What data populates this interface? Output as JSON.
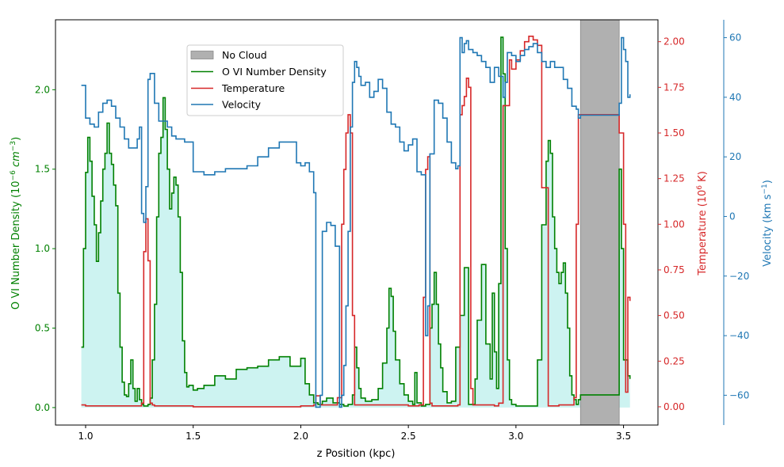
{
  "chart_data": {
    "type": "line",
    "xlabel": "z Position (kpc)",
    "ylabel_left": "O VI Number Density (10",
    "ylabel_left_sup": "−6",
    "ylabel_left_unit_italic": "cm",
    "ylabel_left_sup2": "−3",
    "ylabel_left_close": ")",
    "ylabel_right1": "Temperature (10",
    "ylabel_right1_sup": "6",
    "ylabel_right1_close": " K)",
    "ylabel_right2": "Velocity (km s",
    "ylabel_right2_sup": "−1",
    "ylabel_right2_close": ")",
    "xlim": [
      0.86,
      3.66
    ],
    "ylim_left": [
      -0.11,
      2.44
    ],
    "ylim_temp": [
      -0.1,
      2.12
    ],
    "ylim_vel": [
      -70,
      66
    ],
    "x_ticks": [
      "1.0",
      "1.5",
      "2.0",
      "2.5",
      "3.0",
      "3.5"
    ],
    "x_tick_values": [
      1.0,
      1.5,
      2.0,
      2.5,
      3.0,
      3.5
    ],
    "left_ticks": [
      "0.0",
      "0.5",
      "1.0",
      "1.5",
      "2.0"
    ],
    "left_tick_values": [
      0.0,
      0.5,
      1.0,
      1.5,
      2.0
    ],
    "temp_ticks": [
      "0.00",
      "0.25",
      "0.50",
      "0.75",
      "1.00",
      "1.25",
      "1.50",
      "1.75",
      "2.00"
    ],
    "temp_tick_values": [
      0.0,
      0.25,
      0.5,
      0.75,
      1.0,
      1.25,
      1.5,
      1.75,
      2.0
    ],
    "vel_ticks": [
      "−60",
      "−40",
      "−20",
      "0",
      "20",
      "40",
      "60"
    ],
    "vel_tick_values": [
      -60,
      -40,
      -20,
      0,
      20,
      40,
      60
    ],
    "legend_position": "upper-center",
    "legend": [
      "No Cloud",
      "O VI Number Density",
      "Temperature",
      "Velocity"
    ],
    "no_cloud_region": [
      3.3,
      3.48
    ],
    "colors": {
      "density": "#008000",
      "temperature": "#d62728",
      "velocity": "#1f77b4",
      "fill": "#cdf3f1",
      "no_cloud": "#b0b0b0",
      "left_axis": "#008000",
      "temp_axis": "#d62728",
      "vel_axis": "#1f77b4"
    },
    "series": [
      {
        "name": "O VI Number Density",
        "x": [
          0.98,
          0.99,
          1.0,
          1.01,
          1.02,
          1.03,
          1.04,
          1.05,
          1.06,
          1.07,
          1.08,
          1.09,
          1.1,
          1.11,
          1.12,
          1.13,
          1.14,
          1.15,
          1.16,
          1.17,
          1.18,
          1.19,
          1.2,
          1.21,
          1.22,
          1.23,
          1.24,
          1.25,
          1.26,
          1.27,
          1.28,
          1.29,
          1.3,
          1.31,
          1.32,
          1.33,
          1.34,
          1.35,
          1.36,
          1.37,
          1.38,
          1.39,
          1.4,
          1.41,
          1.42,
          1.43,
          1.44,
          1.45,
          1.46,
          1.47,
          1.48,
          1.5,
          1.52,
          1.55,
          1.6,
          1.65,
          1.7,
          1.75,
          1.8,
          1.85,
          1.9,
          1.95,
          2.0,
          2.02,
          2.04,
          2.06,
          2.08,
          2.1,
          2.12,
          2.15,
          2.18,
          2.2,
          2.22,
          2.24,
          2.25,
          2.26,
          2.27,
          2.28,
          2.3,
          2.33,
          2.36,
          2.38,
          2.4,
          2.41,
          2.42,
          2.43,
          2.44,
          2.46,
          2.48,
          2.5,
          2.52,
          2.53,
          2.54,
          2.56,
          2.58,
          2.6,
          2.61,
          2.62,
          2.63,
          2.64,
          2.65,
          2.66,
          2.68,
          2.7,
          2.72,
          2.74,
          2.76,
          2.78,
          2.8,
          2.81,
          2.82,
          2.84,
          2.86,
          2.88,
          2.89,
          2.9,
          2.91,
          2.92,
          2.93,
          2.94,
          2.95,
          2.96,
          2.97,
          2.98,
          3.0,
          3.05,
          3.1,
          3.12,
          3.14,
          3.15,
          3.16,
          3.17,
          3.18,
          3.19,
          3.2,
          3.21,
          3.22,
          3.23,
          3.24,
          3.25,
          3.26,
          3.27,
          3.28,
          3.29,
          3.3,
          3.48,
          3.49,
          3.5,
          3.51,
          3.52,
          3.53
        ],
        "values": [
          0.38,
          1.0,
          1.48,
          1.7,
          1.55,
          1.33,
          1.15,
          0.92,
          1.1,
          1.3,
          1.5,
          1.6,
          1.79,
          1.6,
          1.53,
          1.4,
          1.27,
          0.72,
          0.38,
          0.16,
          0.08,
          0.07,
          0.15,
          0.3,
          0.12,
          0.04,
          0.12,
          0.05,
          0.02,
          0.01,
          0.01,
          0.02,
          0.06,
          0.3,
          0.65,
          1.2,
          1.6,
          1.7,
          1.95,
          1.75,
          1.5,
          1.25,
          1.35,
          1.45,
          1.4,
          1.2,
          0.85,
          0.42,
          0.22,
          0.13,
          0.14,
          0.11,
          0.12,
          0.14,
          0.2,
          0.18,
          0.24,
          0.25,
          0.26,
          0.3,
          0.32,
          0.26,
          0.31,
          0.15,
          0.08,
          0.03,
          0.02,
          0.04,
          0.06,
          0.03,
          0.02,
          0.01,
          0.02,
          0.08,
          0.38,
          0.25,
          0.12,
          0.06,
          0.04,
          0.05,
          0.12,
          0.28,
          0.5,
          0.75,
          0.7,
          0.48,
          0.3,
          0.15,
          0.08,
          0.04,
          0.02,
          0.22,
          0.03,
          0.01,
          0.02,
          0.5,
          0.65,
          0.85,
          0.65,
          0.4,
          0.25,
          0.1,
          0.03,
          0.04,
          0.38,
          0.58,
          0.88,
          0.02,
          0.02,
          0.18,
          0.55,
          0.9,
          0.4,
          0.18,
          0.72,
          0.35,
          0.12,
          0.78,
          2.33,
          2.1,
          1.0,
          0.3,
          0.05,
          0.02,
          0.01,
          0.01,
          0.3,
          1.15,
          1.55,
          1.68,
          1.6,
          1.2,
          1.0,
          0.85,
          0.78,
          0.85,
          0.91,
          0.72,
          0.5,
          0.2,
          0.08,
          0.05,
          0.02,
          0.05,
          0.08,
          1.5,
          1.0,
          0.3,
          0.3,
          0.2,
          0.18
        ]
      },
      {
        "name": "Temperature",
        "x": [
          0.98,
          1.0,
          1.2,
          1.25,
          1.26,
          1.27,
          1.28,
          1.29,
          1.3,
          1.31,
          1.32,
          1.35,
          1.5,
          1.8,
          2.0,
          2.06,
          2.07,
          2.08,
          2.09,
          2.1,
          2.15,
          2.17,
          2.19,
          2.2,
          2.21,
          2.22,
          2.23,
          2.24,
          2.25,
          2.3,
          2.5,
          2.55,
          2.57,
          2.58,
          2.59,
          2.6,
          2.61,
          2.63,
          2.7,
          2.73,
          2.74,
          2.75,
          2.76,
          2.77,
          2.78,
          2.79,
          2.8,
          2.85,
          2.9,
          2.92,
          2.94,
          2.97,
          2.98,
          3.0,
          3.02,
          3.04,
          3.06,
          3.08,
          3.1,
          3.12,
          3.15,
          3.2,
          3.25,
          3.27,
          3.28,
          3.29,
          3.48,
          3.5,
          3.51,
          3.52,
          3.53
        ],
        "values": [
          0.01,
          0.005,
          0.005,
          0.005,
          0.02,
          0.85,
          1.03,
          0.8,
          0.02,
          0.01,
          0.005,
          0.005,
          0.0,
          0.0,
          0.005,
          0.01,
          0.06,
          0.06,
          0.01,
          0.01,
          0.01,
          0.05,
          1.0,
          1.3,
          1.5,
          1.6,
          1.5,
          0.5,
          0.01,
          0.01,
          0.005,
          0.01,
          0.6,
          1.3,
          1.37,
          0.02,
          0.005,
          0.005,
          0.005,
          0.01,
          1.6,
          1.65,
          1.7,
          1.8,
          1.75,
          0.1,
          0.01,
          0.01,
          0.005,
          0.02,
          1.65,
          1.9,
          1.85,
          1.9,
          1.95,
          2.0,
          2.03,
          2.01,
          1.98,
          1.2,
          0.005,
          0.01,
          0.01,
          0.05,
          1.0,
          1.6,
          1.5,
          1.0,
          0.08,
          0.6,
          0.58
        ]
      },
      {
        "name": "Velocity",
        "x": [
          0.98,
          1.0,
          1.02,
          1.04,
          1.06,
          1.08,
          1.1,
          1.12,
          1.14,
          1.16,
          1.18,
          1.2,
          1.22,
          1.24,
          1.25,
          1.26,
          1.27,
          1.28,
          1.29,
          1.3,
          1.32,
          1.34,
          1.36,
          1.38,
          1.4,
          1.42,
          1.44,
          1.46,
          1.48,
          1.5,
          1.55,
          1.6,
          1.65,
          1.7,
          1.75,
          1.8,
          1.85,
          1.9,
          1.95,
          1.98,
          2.0,
          2.02,
          2.04,
          2.06,
          2.07,
          2.08,
          2.09,
          2.1,
          2.12,
          2.14,
          2.16,
          2.18,
          2.19,
          2.2,
          2.21,
          2.22,
          2.23,
          2.24,
          2.25,
          2.26,
          2.27,
          2.28,
          2.3,
          2.32,
          2.34,
          2.36,
          2.38,
          2.4,
          2.42,
          2.44,
          2.46,
          2.48,
          2.5,
          2.52,
          2.54,
          2.56,
          2.58,
          2.59,
          2.6,
          2.62,
          2.64,
          2.66,
          2.68,
          2.7,
          2.72,
          2.73,
          2.74,
          2.75,
          2.76,
          2.77,
          2.78,
          2.8,
          2.82,
          2.84,
          2.86,
          2.88,
          2.9,
          2.92,
          2.94,
          2.95,
          2.96,
          2.98,
          3.0,
          3.02,
          3.04,
          3.06,
          3.08,
          3.1,
          3.12,
          3.14,
          3.16,
          3.18,
          3.2,
          3.22,
          3.24,
          3.26,
          3.28,
          3.29,
          3.3,
          3.48,
          3.49,
          3.5,
          3.51,
          3.52,
          3.53
        ],
        "values": [
          44,
          33,
          31,
          30,
          35,
          38,
          39,
          37,
          33,
          30,
          26,
          23,
          23,
          26,
          30,
          1,
          -2,
          10,
          46,
          48,
          38,
          32,
          32,
          30,
          27,
          26,
          26,
          25,
          25,
          15,
          14,
          15,
          16,
          16,
          17,
          20,
          23,
          25,
          25,
          18,
          17,
          18,
          15,
          8,
          -64,
          -64,
          -60,
          -5,
          -2,
          -3,
          -10,
          -64,
          -60,
          -50,
          -30,
          -5,
          30,
          45,
          52,
          50,
          47,
          44,
          45,
          40,
          42,
          46,
          43,
          35,
          31,
          30,
          25,
          22,
          24,
          26,
          15,
          14,
          -40,
          -30,
          21,
          39,
          38,
          33,
          25,
          18,
          16,
          17,
          60,
          55,
          58,
          59,
          56,
          55,
          54,
          52,
          50,
          45,
          50,
          47,
          40,
          45,
          55,
          54,
          52,
          54,
          56,
          57,
          58,
          55,
          52,
          50,
          52,
          50,
          50,
          46,
          43,
          37,
          36,
          33,
          34,
          38,
          60,
          56,
          52,
          40,
          41
        ]
      }
    ]
  }
}
